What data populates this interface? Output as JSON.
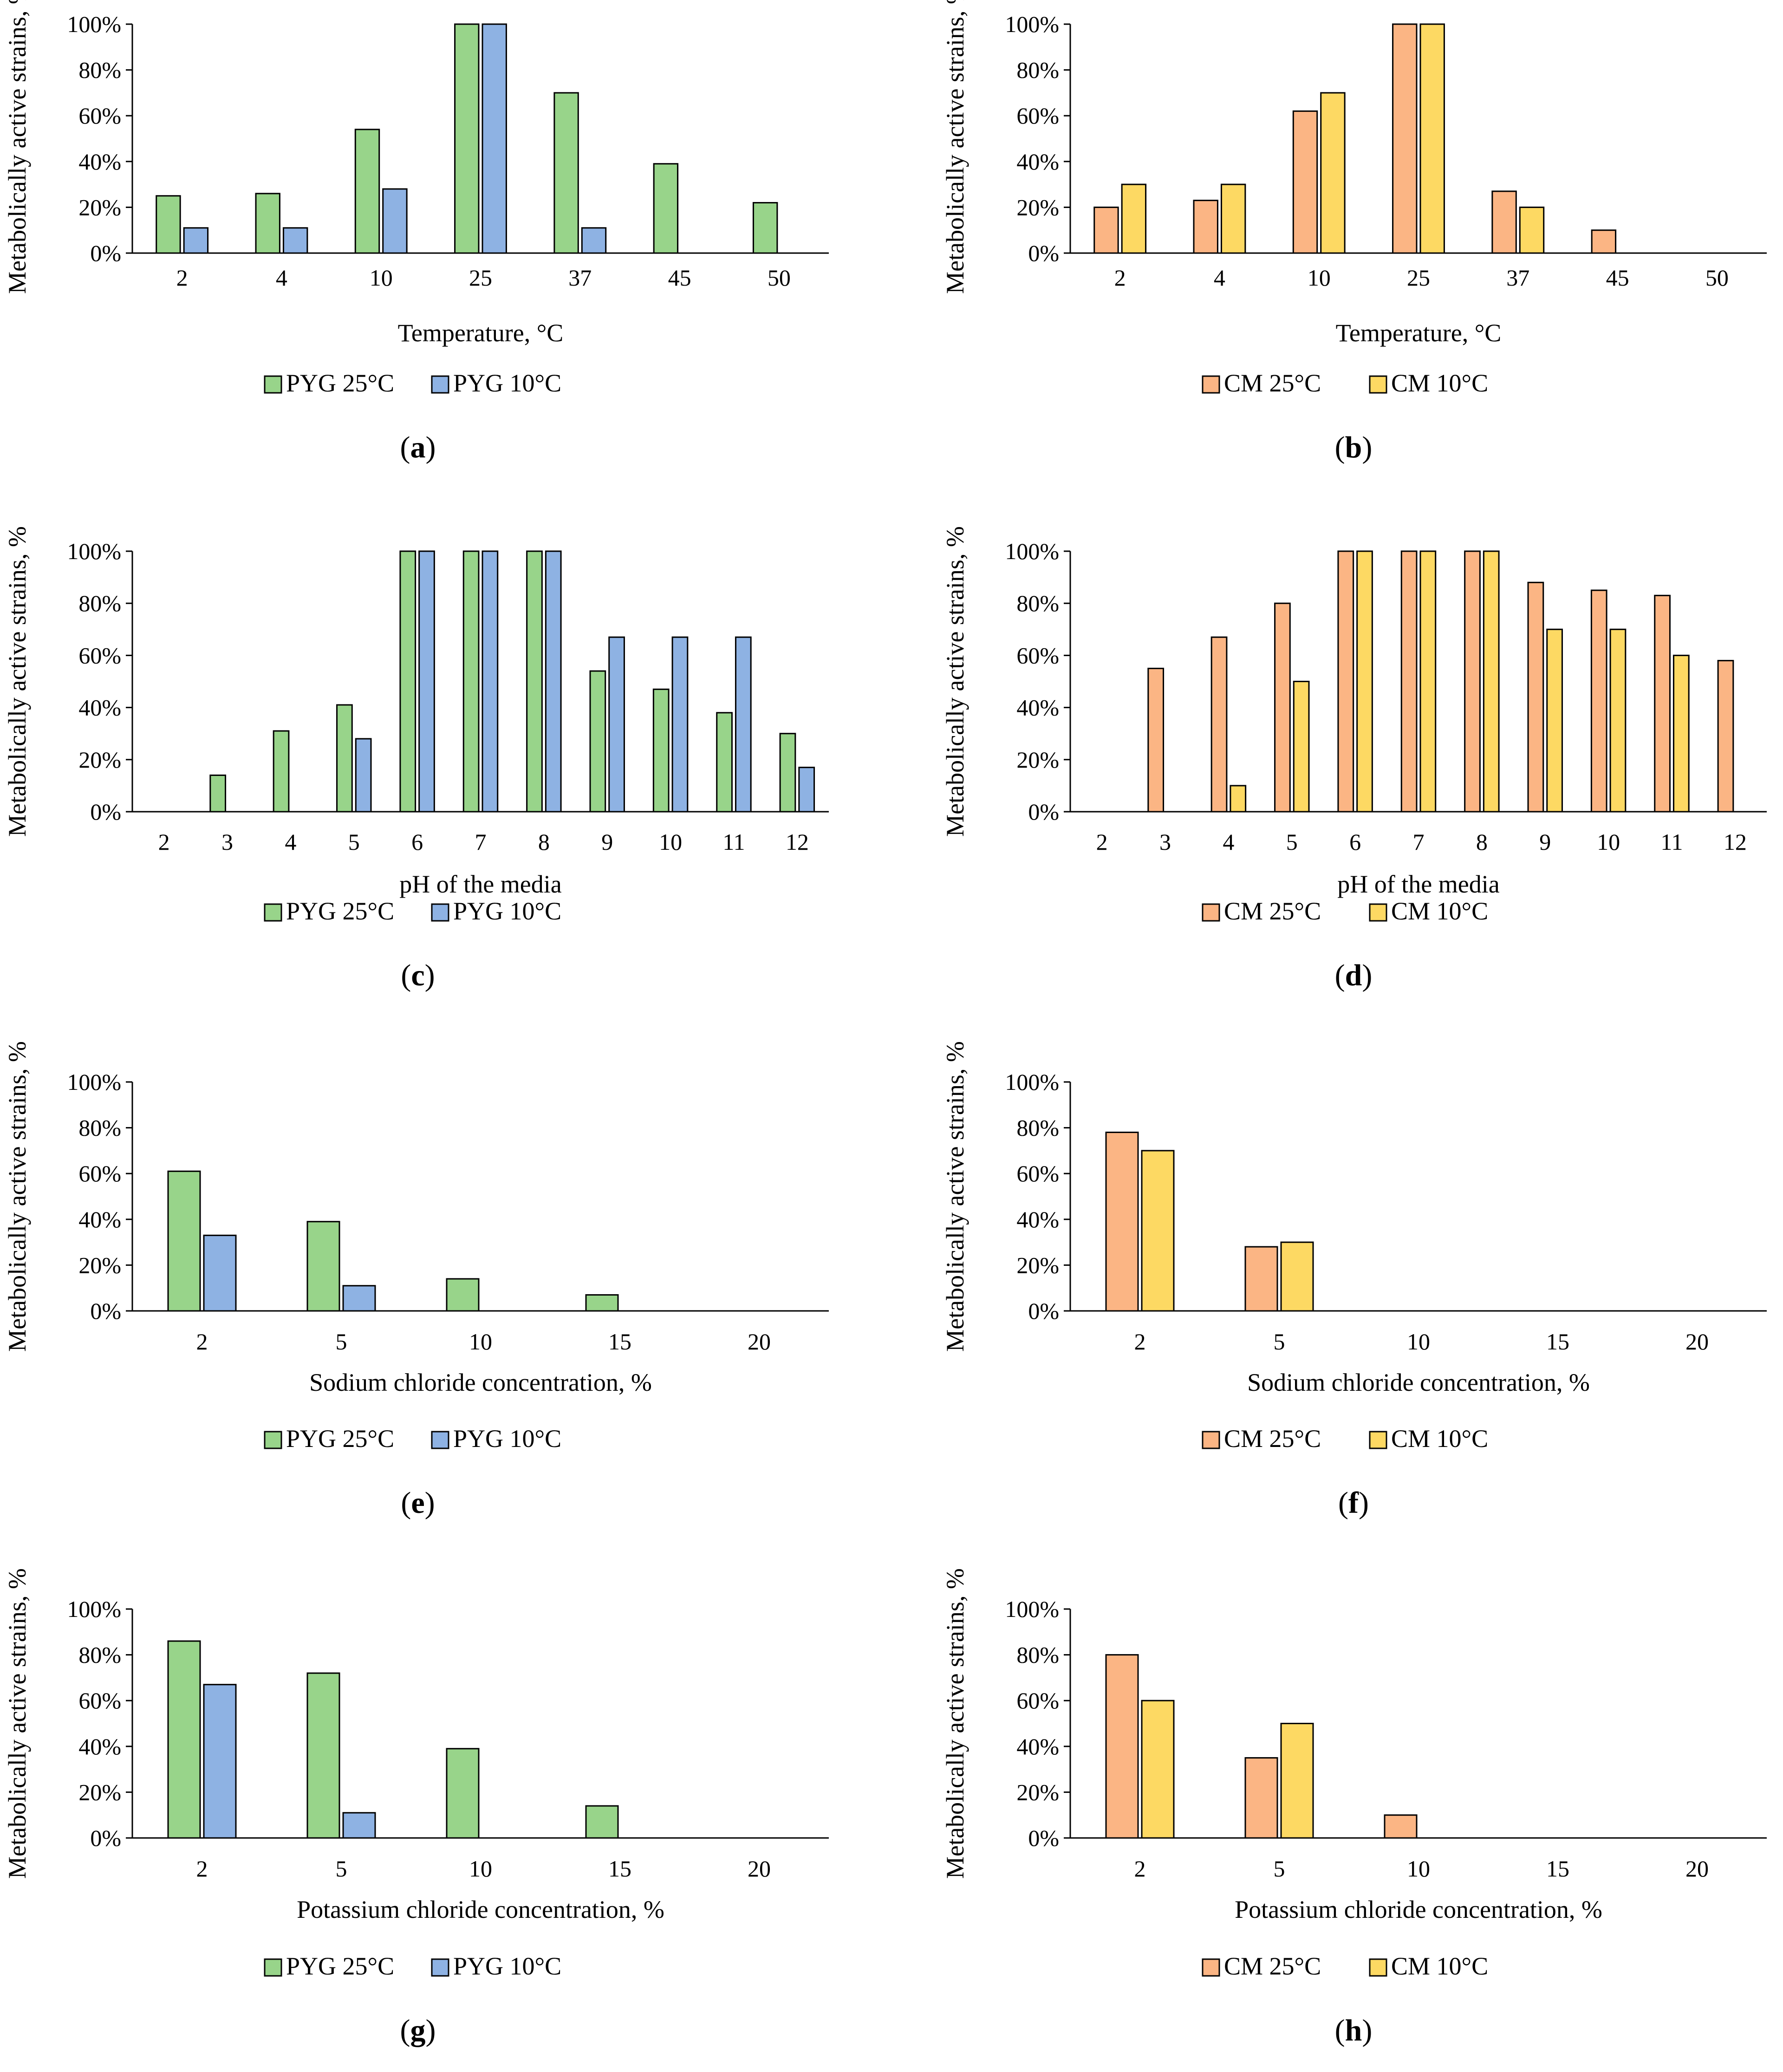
{
  "figure": {
    "legends": {
      "pyg": [
        "PYG 25°C",
        "PYG 10°C"
      ],
      "cm": [
        "CM 25°C",
        "CM 10°C"
      ]
    },
    "colors": {
      "PYG 25°C": "#98d48a",
      "PYG 10°C": "#8eb2e3",
      "CM 25°C": "#fbb584",
      "CM 10°C": "#fdd963"
    }
  },
  "chart_data": [
    {
      "id": "a",
      "type": "bar",
      "caption": "a",
      "xlabel": "Temperature, °C",
      "ylabel": "Metabolically active strains, %",
      "ylim": [
        0,
        100
      ],
      "yticks": [
        "0%",
        "20%",
        "40%",
        "60%",
        "80%",
        "100%"
      ],
      "categories": [
        "2",
        "4",
        "10",
        "25",
        "37",
        "45",
        "50"
      ],
      "series": [
        {
          "name": "PYG 25°C",
          "values": [
            25,
            26,
            54,
            100,
            70,
            39,
            22
          ]
        },
        {
          "name": "PYG 10°C",
          "values": [
            11,
            11,
            28,
            100,
            11,
            0,
            0
          ]
        }
      ],
      "legend": "bottom"
    },
    {
      "id": "b",
      "type": "bar",
      "caption": "b",
      "xlabel": "Temperature, °C",
      "ylabel": "Metabolically active strains, %",
      "ylim": [
        0,
        100
      ],
      "yticks": [
        "0%",
        "20%",
        "40%",
        "60%",
        "80%",
        "100%"
      ],
      "categories": [
        "2",
        "4",
        "10",
        "25",
        "37",
        "45",
        "50"
      ],
      "series": [
        {
          "name": "CM 25°C",
          "values": [
            20,
            23,
            62,
            100,
            27,
            10,
            0
          ]
        },
        {
          "name": "CM 10°C",
          "values": [
            30,
            30,
            70,
            100,
            20,
            0,
            0
          ]
        }
      ],
      "legend": "bottom"
    },
    {
      "id": "c",
      "type": "bar",
      "caption": "c",
      "xlabel": "pH of the media",
      "ylabel": "Metabolically active strains, %",
      "ylim": [
        0,
        100
      ],
      "yticks": [
        "0%",
        "20%",
        "40%",
        "60%",
        "80%",
        "100%"
      ],
      "categories": [
        "2",
        "3",
        "4",
        "5",
        "6",
        "7",
        "8",
        "9",
        "10",
        "11",
        "12"
      ],
      "series": [
        {
          "name": "PYG 25°C",
          "values": [
            0,
            14,
            31,
            41,
            100,
            100,
            100,
            54,
            47,
            38,
            30
          ]
        },
        {
          "name": "PYG 10°C",
          "values": [
            0,
            0,
            0,
            28,
            100,
            100,
            100,
            67,
            67,
            67,
            17
          ]
        }
      ],
      "legend": "bottom"
    },
    {
      "id": "d",
      "type": "bar",
      "caption": "d",
      "xlabel": "pH of the media",
      "ylabel": "Metabolically active strains, %",
      "ylim": [
        0,
        100
      ],
      "yticks": [
        "0%",
        "20%",
        "40%",
        "60%",
        "80%",
        "100%"
      ],
      "categories": [
        "2",
        "3",
        "4",
        "5",
        "6",
        "7",
        "8",
        "9",
        "10",
        "11",
        "12"
      ],
      "series": [
        {
          "name": "CM 25°C",
          "values": [
            0,
            55,
            67,
            80,
            100,
            100,
            100,
            88,
            85,
            83,
            58
          ]
        },
        {
          "name": "CM 10°C",
          "values": [
            0,
            0,
            10,
            50,
            100,
            100,
            100,
            70,
            70,
            60,
            0
          ]
        }
      ],
      "legend": "bottom"
    },
    {
      "id": "e",
      "type": "bar",
      "caption": "e",
      "xlabel": "Sodium chloride concentration, %",
      "ylabel": "Metabolically active strains, %",
      "ylim": [
        0,
        100
      ],
      "yticks": [
        "0%",
        "20%",
        "40%",
        "60%",
        "80%",
        "100%"
      ],
      "categories": [
        "2",
        "5",
        "10",
        "15",
        "20"
      ],
      "series": [
        {
          "name": "PYG 25°C",
          "values": [
            61,
            39,
            14,
            7,
            0
          ]
        },
        {
          "name": "PYG 10°C",
          "values": [
            33,
            11,
            0,
            0,
            0
          ]
        }
      ],
      "legend": "bottom"
    },
    {
      "id": "f",
      "type": "bar",
      "caption": "f",
      "xlabel": "Sodium chloride concentration, %",
      "ylabel": "Metabolically active strains, %",
      "ylim": [
        0,
        100
      ],
      "yticks": [
        "0%",
        "20%",
        "40%",
        "60%",
        "80%",
        "100%"
      ],
      "categories": [
        "2",
        "5",
        "10",
        "15",
        "20"
      ],
      "series": [
        {
          "name": "CM 25°C",
          "values": [
            78,
            28,
            0,
            0,
            0
          ]
        },
        {
          "name": "CM 10°C",
          "values": [
            70,
            30,
            0,
            0,
            0
          ]
        }
      ],
      "legend": "bottom"
    },
    {
      "id": "g",
      "type": "bar",
      "caption": "g",
      "xlabel": "Potassium chloride concentration, %",
      "ylabel": "Metabolically active strains, %",
      "ylim": [
        0,
        100
      ],
      "yticks": [
        "0%",
        "20%",
        "40%",
        "60%",
        "80%",
        "100%"
      ],
      "categories": [
        "2",
        "5",
        "10",
        "15",
        "20"
      ],
      "series": [
        {
          "name": "PYG 25°C",
          "values": [
            86,
            72,
            39,
            14,
            0
          ]
        },
        {
          "name": "PYG 10°C",
          "values": [
            67,
            11,
            0,
            0,
            0
          ]
        }
      ],
      "legend": "bottom"
    },
    {
      "id": "h",
      "type": "bar",
      "caption": "h",
      "xlabel": "Potassium chloride concentration, %",
      "ylabel": "Metabolically active strains, %",
      "ylim": [
        0,
        100
      ],
      "yticks": [
        "0%",
        "20%",
        "40%",
        "60%",
        "80%",
        "100%"
      ],
      "categories": [
        "2",
        "5",
        "10",
        "15",
        "20"
      ],
      "series": [
        {
          "name": "CM 25°C",
          "values": [
            80,
            35,
            10,
            0,
            0
          ]
        },
        {
          "name": "CM 10°C",
          "values": [
            60,
            50,
            0,
            0,
            0
          ]
        }
      ],
      "legend": "bottom"
    }
  ]
}
